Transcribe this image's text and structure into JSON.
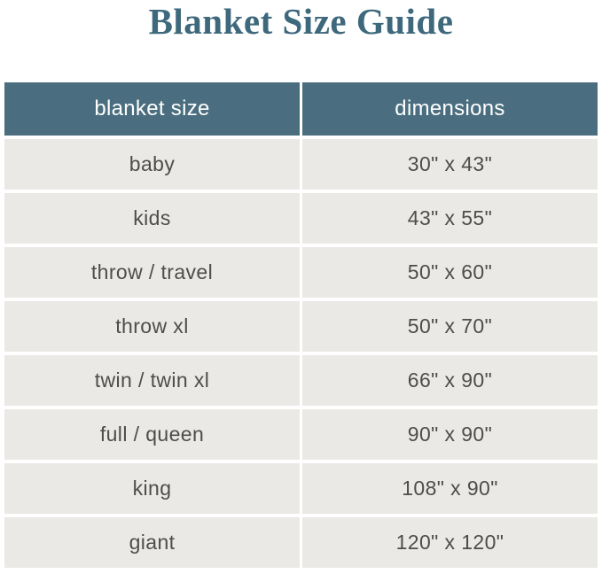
{
  "title": "Blanket Size Guide",
  "colors": {
    "title_text": "#3e687c",
    "header_bg": "#4a6e7f",
    "header_text": "#ffffff",
    "row_bg": "#ebe9e5",
    "row_text": "#4d4d4d",
    "gutter": "#ffffff"
  },
  "chart_data": {
    "type": "table",
    "title": "Blanket Size Guide",
    "columns": [
      "blanket size",
      "dimensions"
    ],
    "rows": [
      [
        "baby",
        "30\" x 43\""
      ],
      [
        "kids",
        "43\" x 55\""
      ],
      [
        "throw / travel",
        "50\" x 60\""
      ],
      [
        "throw xl",
        "50\" x 70\""
      ],
      [
        "twin / twin xl",
        "66\" x 90\""
      ],
      [
        "full / queen",
        "90\" x 90\""
      ],
      [
        "king",
        "108\" x 90\""
      ],
      [
        "giant",
        "120\" x 120\""
      ]
    ]
  }
}
